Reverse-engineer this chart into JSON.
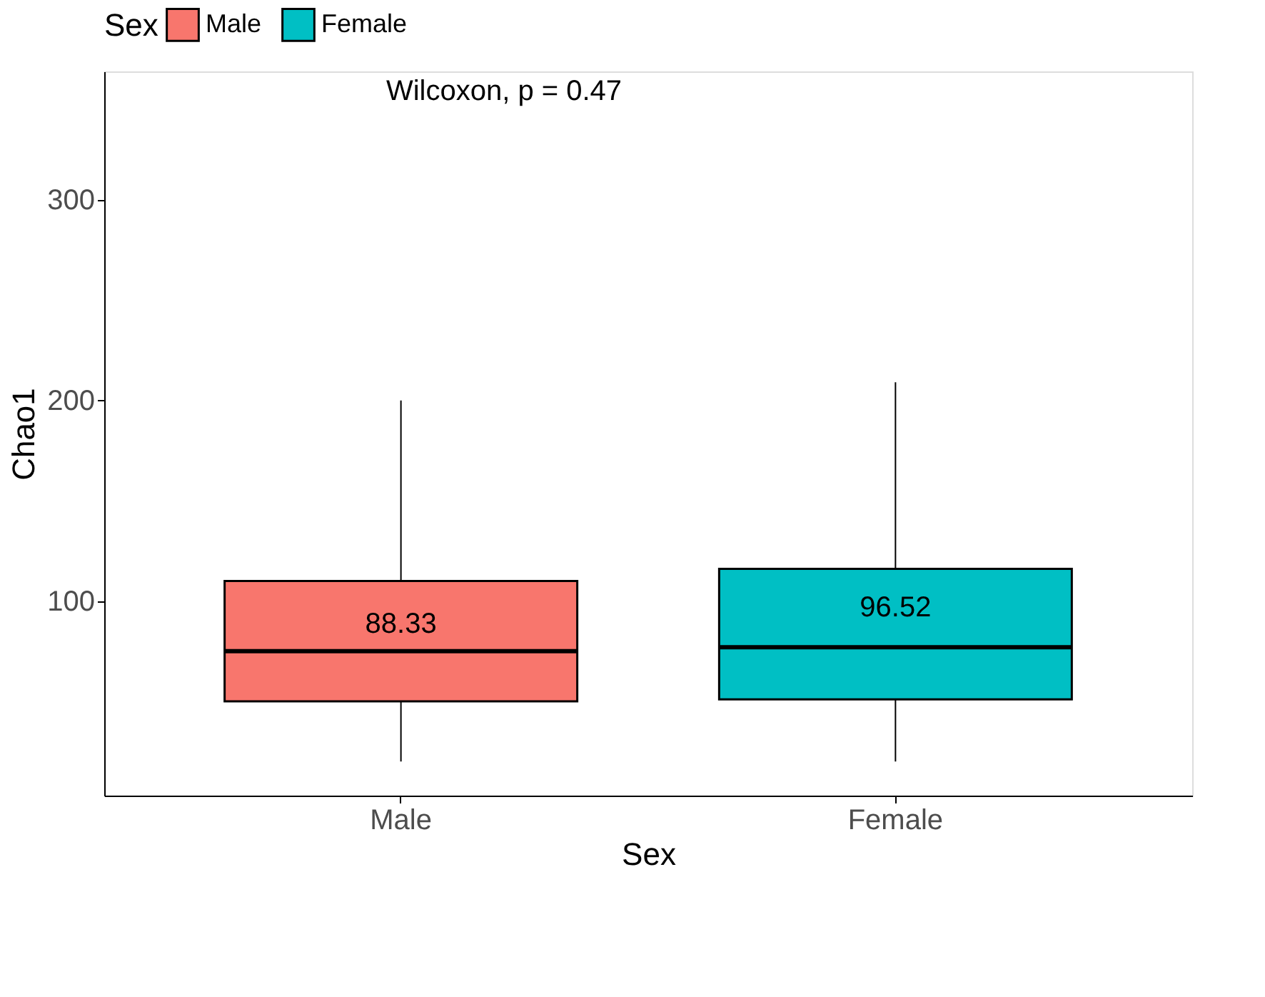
{
  "chart_data": {
    "type": "box",
    "xlabel": "Sex",
    "ylabel": "Chao1",
    "legend_title": "Sex",
    "legend": "top",
    "categories": [
      "Male",
      "Female"
    ],
    "series": [
      {
        "name": "Male",
        "color": "#f8766d",
        "boxes": [
          {
            "low": 20,
            "q1": 50,
            "median": 75,
            "q3": 110,
            "high": 200
          },
          null
        ]
      },
      {
        "name": "Female",
        "color": "#00bfc4",
        "boxes": [
          null,
          {
            "low": 20,
            "q1": 51,
            "median": 77,
            "q3": 116,
            "high": 209
          }
        ]
      }
    ],
    "ylim": [
      3,
      364
    ],
    "yticks": [
      100,
      200,
      300
    ],
    "grid": false,
    "annotations": [
      "Wilcoxon, p = 0.47",
      {
        "text": "88.33",
        "x": "Male",
        "y": 88.33
      },
      {
        "text": "96.52",
        "x": "Female",
        "y": 96.52
      }
    ]
  }
}
